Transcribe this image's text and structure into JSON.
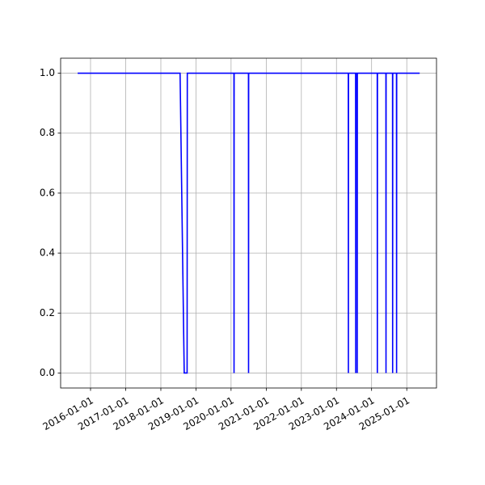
{
  "chart_data": {
    "type": "line",
    "color": "#0000ff",
    "x": [
      "2015-08-20",
      "2018-07-20",
      "2018-09-01",
      "2018-10-01",
      "2018-10-03",
      "2020-01-31",
      "2020-02-01",
      "2020-02-02",
      "2020-06-30",
      "2020-07-01",
      "2020-07-02",
      "2023-05-04",
      "2023-05-05",
      "2023-05-06",
      "2023-07-19",
      "2023-07-20",
      "2023-07-21",
      "2023-08-04",
      "2023-08-05",
      "2023-08-06",
      "2024-02-29",
      "2024-03-01",
      "2024-03-02",
      "2024-05-29",
      "2024-05-30",
      "2024-05-31",
      "2024-08-06",
      "2024-08-07",
      "2024-08-08",
      "2024-09-16",
      "2024-09-17",
      "2024-09-18",
      "2025-05-15"
    ],
    "values": [
      1,
      1,
      0,
      0,
      1,
      1,
      0,
      1,
      1,
      0,
      1,
      1,
      0,
      1,
      1,
      0,
      1,
      1,
      0,
      1,
      1,
      0,
      1,
      1,
      0,
      1,
      1,
      0,
      1,
      1,
      0,
      1,
      1
    ],
    "xlim": [
      "2015-02-24",
      "2025-11-06"
    ],
    "xticks": [
      "2016-01-01",
      "2017-01-01",
      "2018-01-01",
      "2019-01-01",
      "2020-01-01",
      "2021-01-01",
      "2022-01-01",
      "2023-01-01",
      "2024-01-01",
      "2025-01-01"
    ],
    "ylim": [
      -0.05,
      1.05
    ],
    "yticks": [
      {
        "value": 0,
        "label": "0.0"
      },
      0.2,
      0.4,
      0.6,
      0.8,
      {
        "value": 1,
        "label": "1.0"
      }
    ],
    "grid": true
  }
}
